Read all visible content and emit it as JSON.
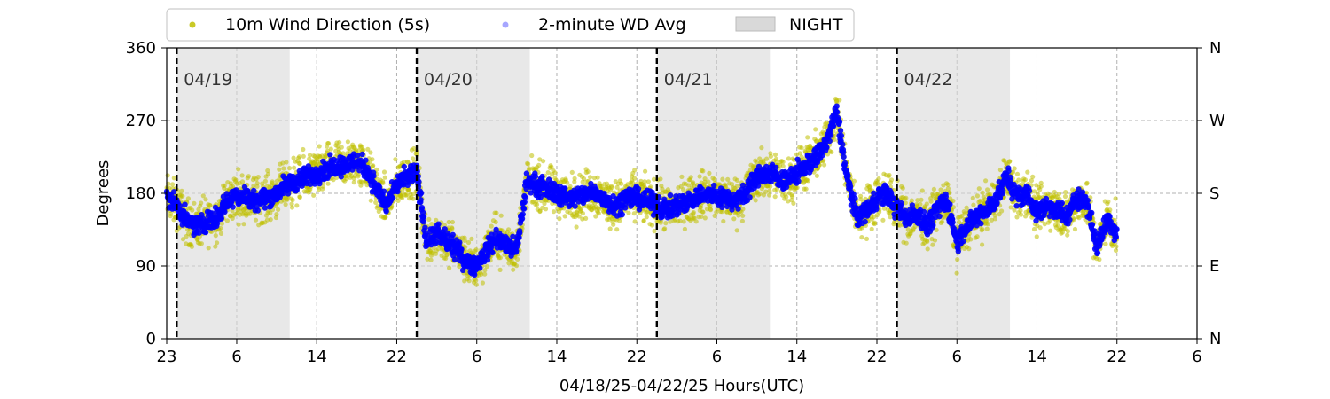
{
  "chart_data": {
    "type": "scatter",
    "xlabel": "04/18/25-04/22/25  Hours(UTC)",
    "ylabel": "Degrees",
    "ylim": [
      0,
      360
    ],
    "xlim_hours_from_start": [
      0,
      103
    ],
    "x_ticks": [
      {
        "hour": 0,
        "label": "23"
      },
      {
        "hour": 7,
        "label": "6"
      },
      {
        "hour": 15,
        "label": "14"
      },
      {
        "hour": 23,
        "label": "22"
      },
      {
        "hour": 31,
        "label": "6"
      },
      {
        "hour": 39,
        "label": "14"
      },
      {
        "hour": 47,
        "label": "22"
      },
      {
        "hour": 55,
        "label": "6"
      },
      {
        "hour": 63,
        "label": "14"
      },
      {
        "hour": 71,
        "label": "22"
      },
      {
        "hour": 79,
        "label": "6"
      },
      {
        "hour": 87,
        "label": "14"
      },
      {
        "hour": 95,
        "label": "22"
      },
      {
        "hour": 103,
        "label": "6"
      }
    ],
    "y_ticks": [
      0,
      90,
      180,
      270,
      360
    ],
    "y2_ticks": [
      {
        "value": 0,
        "label": "N"
      },
      {
        "value": 90,
        "label": "E"
      },
      {
        "value": 180,
        "label": "S"
      },
      {
        "value": 270,
        "label": "W"
      },
      {
        "value": 360,
        "label": "N"
      }
    ],
    "grid": true,
    "legend_position": "top, above plot",
    "legend": [
      {
        "label": "10m Wind Direction (5s)",
        "kind": "marker",
        "color": "#bfbf00"
      },
      {
        "label": "2-minute WD Avg",
        "kind": "marker",
        "color": "#0000ff"
      },
      {
        "label": "NIGHT",
        "kind": "patch",
        "color": "#d9d9d9"
      }
    ],
    "night_bands": [
      [
        1,
        12.3
      ],
      [
        25,
        36.3
      ],
      [
        49,
        60.3
      ],
      [
        73,
        84.3
      ]
    ],
    "day_markers": [
      {
        "hour": 1,
        "label": "04/19"
      },
      {
        "hour": 25,
        "label": "04/20"
      },
      {
        "hour": 49,
        "label": "04/21"
      },
      {
        "hour": 73,
        "label": "04/22"
      }
    ],
    "series": [
      {
        "name": "10m Wind Direction (5s)",
        "color": "#bfbf00",
        "spread": 28,
        "x": [
          0,
          1,
          2,
          3,
          4,
          5,
          6,
          7,
          8,
          9,
          10,
          11,
          12,
          13,
          14,
          15,
          16,
          17,
          18,
          19,
          20,
          21,
          22,
          23,
          24,
          25,
          26,
          27,
          28,
          29,
          30,
          31,
          32,
          33,
          34,
          35,
          36,
          37,
          38,
          39,
          40,
          41,
          42,
          43,
          44,
          45,
          46,
          47,
          48,
          49,
          50,
          51,
          52,
          53,
          54,
          55,
          56,
          57,
          58,
          59,
          60,
          61,
          62,
          63,
          64,
          65,
          66,
          67,
          68,
          69,
          70,
          71,
          72,
          73,
          74,
          75,
          76,
          77,
          78,
          79,
          80,
          81,
          82,
          83,
          84,
          85,
          86,
          87,
          88,
          89,
          90,
          91,
          92,
          93,
          94,
          95
        ],
        "y": [
          175,
          165,
          145,
          140,
          145,
          150,
          170,
          178,
          175,
          172,
          175,
          180,
          190,
          195,
          200,
          205,
          210,
          215,
          215,
          220,
          210,
          185,
          165,
          190,
          200,
          205,
          120,
          130,
          120,
          110,
          95,
          90,
          110,
          125,
          115,
          110,
          195,
          190,
          185,
          180,
          175,
          175,
          180,
          180,
          170,
          165,
          175,
          175,
          170,
          165,
          160,
          165,
          170,
          175,
          180,
          175,
          175,
          170,
          185,
          200,
          205,
          200,
          195,
          205,
          215,
          225,
          245,
          280,
          200,
          150,
          160,
          175,
          180,
          160,
          150,
          155,
          140,
          160,
          170,
          120,
          140,
          150,
          160,
          175,
          200,
          175,
          180,
          155,
          165,
          160,
          150,
          175,
          170,
          110,
          150,
          130
        ]
      },
      {
        "name": "2-minute WD Avg",
        "color": "#0000ff",
        "spread": 12,
        "x": [
          0,
          1,
          2,
          3,
          4,
          5,
          6,
          7,
          8,
          9,
          10,
          11,
          12,
          13,
          14,
          15,
          16,
          17,
          18,
          19,
          20,
          21,
          22,
          23,
          24,
          25,
          26,
          27,
          28,
          29,
          30,
          31,
          32,
          33,
          34,
          35,
          36,
          37,
          38,
          39,
          40,
          41,
          42,
          43,
          44,
          45,
          46,
          47,
          48,
          49,
          50,
          51,
          52,
          53,
          54,
          55,
          56,
          57,
          58,
          59,
          60,
          61,
          62,
          63,
          64,
          65,
          66,
          67,
          68,
          69,
          70,
          71,
          72,
          73,
          74,
          75,
          76,
          77,
          78,
          79,
          80,
          81,
          82,
          83,
          84,
          85,
          86,
          87,
          88,
          89,
          90,
          91,
          92,
          93,
          94,
          95
        ],
        "y": [
          175,
          165,
          145,
          140,
          145,
          150,
          170,
          178,
          175,
          172,
          175,
          180,
          190,
          195,
          200,
          205,
          210,
          215,
          215,
          220,
          210,
          185,
          165,
          190,
          200,
          205,
          120,
          130,
          120,
          110,
          95,
          90,
          110,
          125,
          115,
          110,
          195,
          190,
          185,
          180,
          175,
          175,
          180,
          180,
          170,
          165,
          175,
          175,
          170,
          165,
          160,
          165,
          170,
          175,
          180,
          175,
          175,
          170,
          185,
          200,
          205,
          200,
          195,
          205,
          215,
          225,
          245,
          280,
          200,
          150,
          160,
          175,
          180,
          160,
          150,
          155,
          140,
          160,
          170,
          120,
          140,
          150,
          160,
          175,
          200,
          175,
          180,
          155,
          165,
          160,
          150,
          175,
          170,
          110,
          150,
          130
        ]
      }
    ]
  }
}
